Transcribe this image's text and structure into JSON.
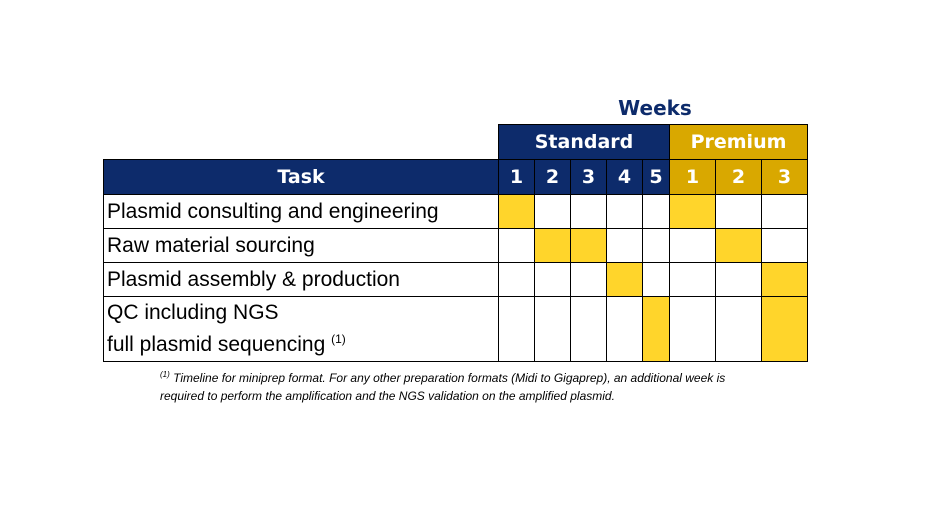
{
  "header": {
    "weeks_label": "Weeks"
  },
  "groups": {
    "standard_label": "Standard",
    "premium_label": "Premium"
  },
  "columns": {
    "task_label": "Task",
    "standard_weeks": [
      "1",
      "2",
      "3",
      "4",
      "5"
    ],
    "premium_weeks": [
      "1",
      "2",
      "3"
    ]
  },
  "tasks": [
    {
      "name": "Plasmid consulting and engineering",
      "standard": [
        1,
        0,
        0,
        0,
        0
      ],
      "premium": [
        1,
        0,
        0
      ]
    },
    {
      "name": "Raw material sourcing",
      "standard": [
        0,
        1,
        1,
        0,
        0
      ],
      "premium": [
        0,
        1,
        0
      ]
    },
    {
      "name": "Plasmid assembly & production",
      "standard": [
        0,
        0,
        0,
        1,
        0
      ],
      "premium": [
        0,
        0,
        1
      ]
    },
    {
      "name_line1": "QC including NGS",
      "name_line2": "full plasmid sequencing",
      "name_sup": "(1)",
      "standard": [
        0,
        0,
        0,
        0,
        1
      ],
      "premium": [
        0,
        0,
        1
      ]
    }
  ],
  "colors": {
    "navy": "#0d2b6b",
    "gold": "#d9a800",
    "highlight": "#ffd52b"
  },
  "footnote": {
    "marker": "(1)",
    "text": "Timeline for miniprep format. For any other preparation formats (Midi to Gigaprep), an additional week is required to perform the amplification and the NGS validation on the amplified plasmid."
  }
}
